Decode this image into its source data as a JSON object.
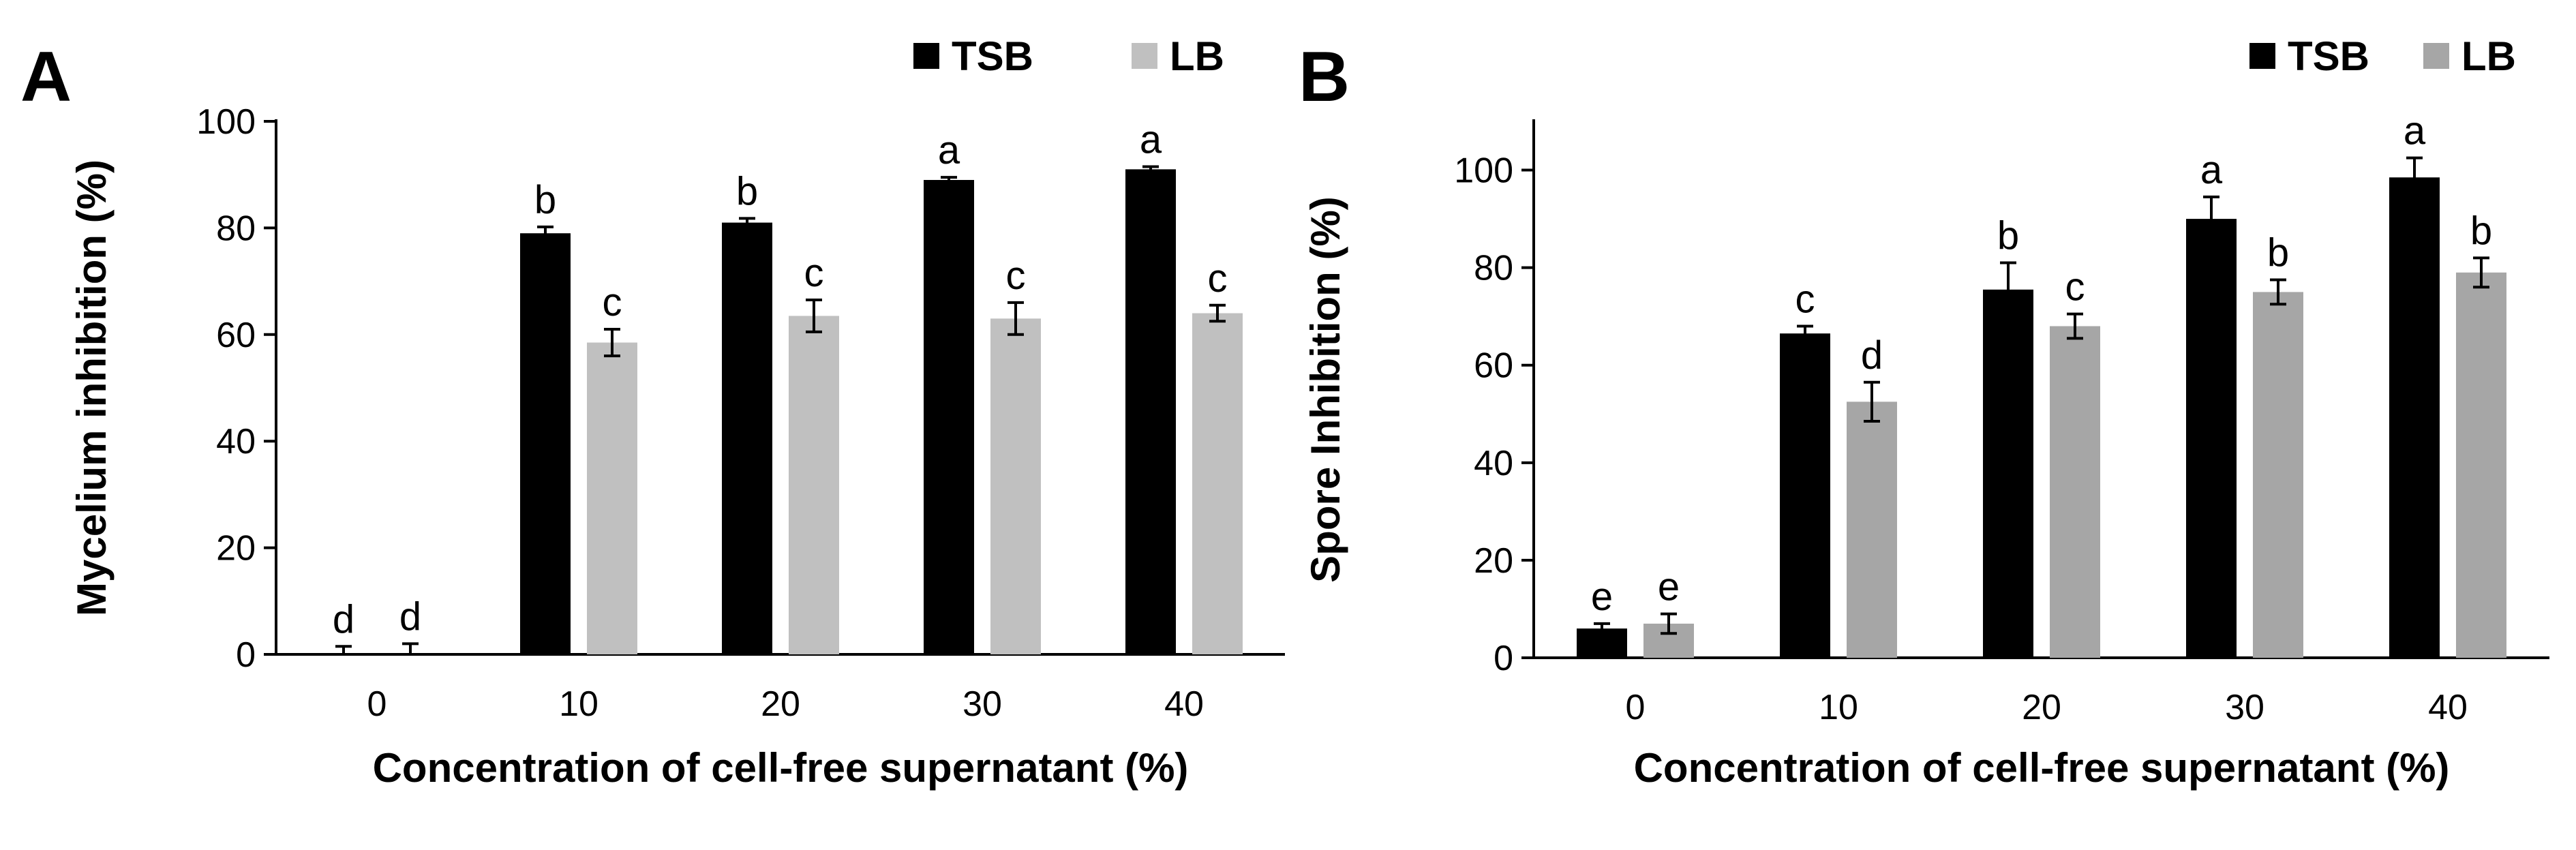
{
  "chart_data": [
    {
      "type": "bar",
      "panel_label": "A",
      "categories": [
        "0",
        "10",
        "20",
        "30",
        "40"
      ],
      "series": [
        {
          "name": "TSB",
          "color": "#000000",
          "values": [
            0,
            79,
            81,
            89,
            91
          ],
          "errors": [
            1.5,
            1.2,
            0.8,
            0.5,
            0.5
          ],
          "letters": [
            "d",
            "b",
            "b",
            "a",
            "a"
          ]
        },
        {
          "name": "LB",
          "color": "#c0c0c0",
          "values": [
            0,
            58.5,
            63.5,
            63,
            64
          ],
          "errors": [
            2,
            2.5,
            3,
            3,
            1.5
          ],
          "letters": [
            "d",
            "c",
            "c",
            "c",
            "c"
          ]
        }
      ],
      "xlabel": "Concentration of cell-free supernatant (%)",
      "ylabel": "Mycelium inhibition (%)",
      "ylim": [
        0,
        100
      ],
      "yticks": [
        0,
        20,
        40,
        60,
        80,
        100
      ],
      "legend_position": "top-right",
      "grid": false
    },
    {
      "type": "bar",
      "panel_label": "B",
      "categories": [
        "0",
        "10",
        "20",
        "30",
        "40"
      ],
      "series": [
        {
          "name": "TSB",
          "color": "#000000",
          "values": [
            6,
            66.5,
            75.5,
            90,
            98.5
          ],
          "errors": [
            1,
            1.5,
            5.5,
            4.5,
            4
          ],
          "letters": [
            "e",
            "c",
            "b",
            "a",
            "a"
          ]
        },
        {
          "name": "LB",
          "color": "#a6a6a6",
          "values": [
            7,
            52.5,
            68,
            75,
            79
          ],
          "errors": [
            2,
            4,
            2.5,
            2.5,
            3
          ],
          "letters": [
            "e",
            "d",
            "c",
            "b",
            "b"
          ]
        }
      ],
      "xlabel": "Concentration of  cell-free supernatant (%)",
      "ylabel": "Spore Inhibition (%)",
      "ylim": [
        0,
        110
      ],
      "yticks": [
        0,
        20,
        40,
        60,
        80,
        100
      ],
      "legend_position": "top-right",
      "grid": false
    }
  ]
}
